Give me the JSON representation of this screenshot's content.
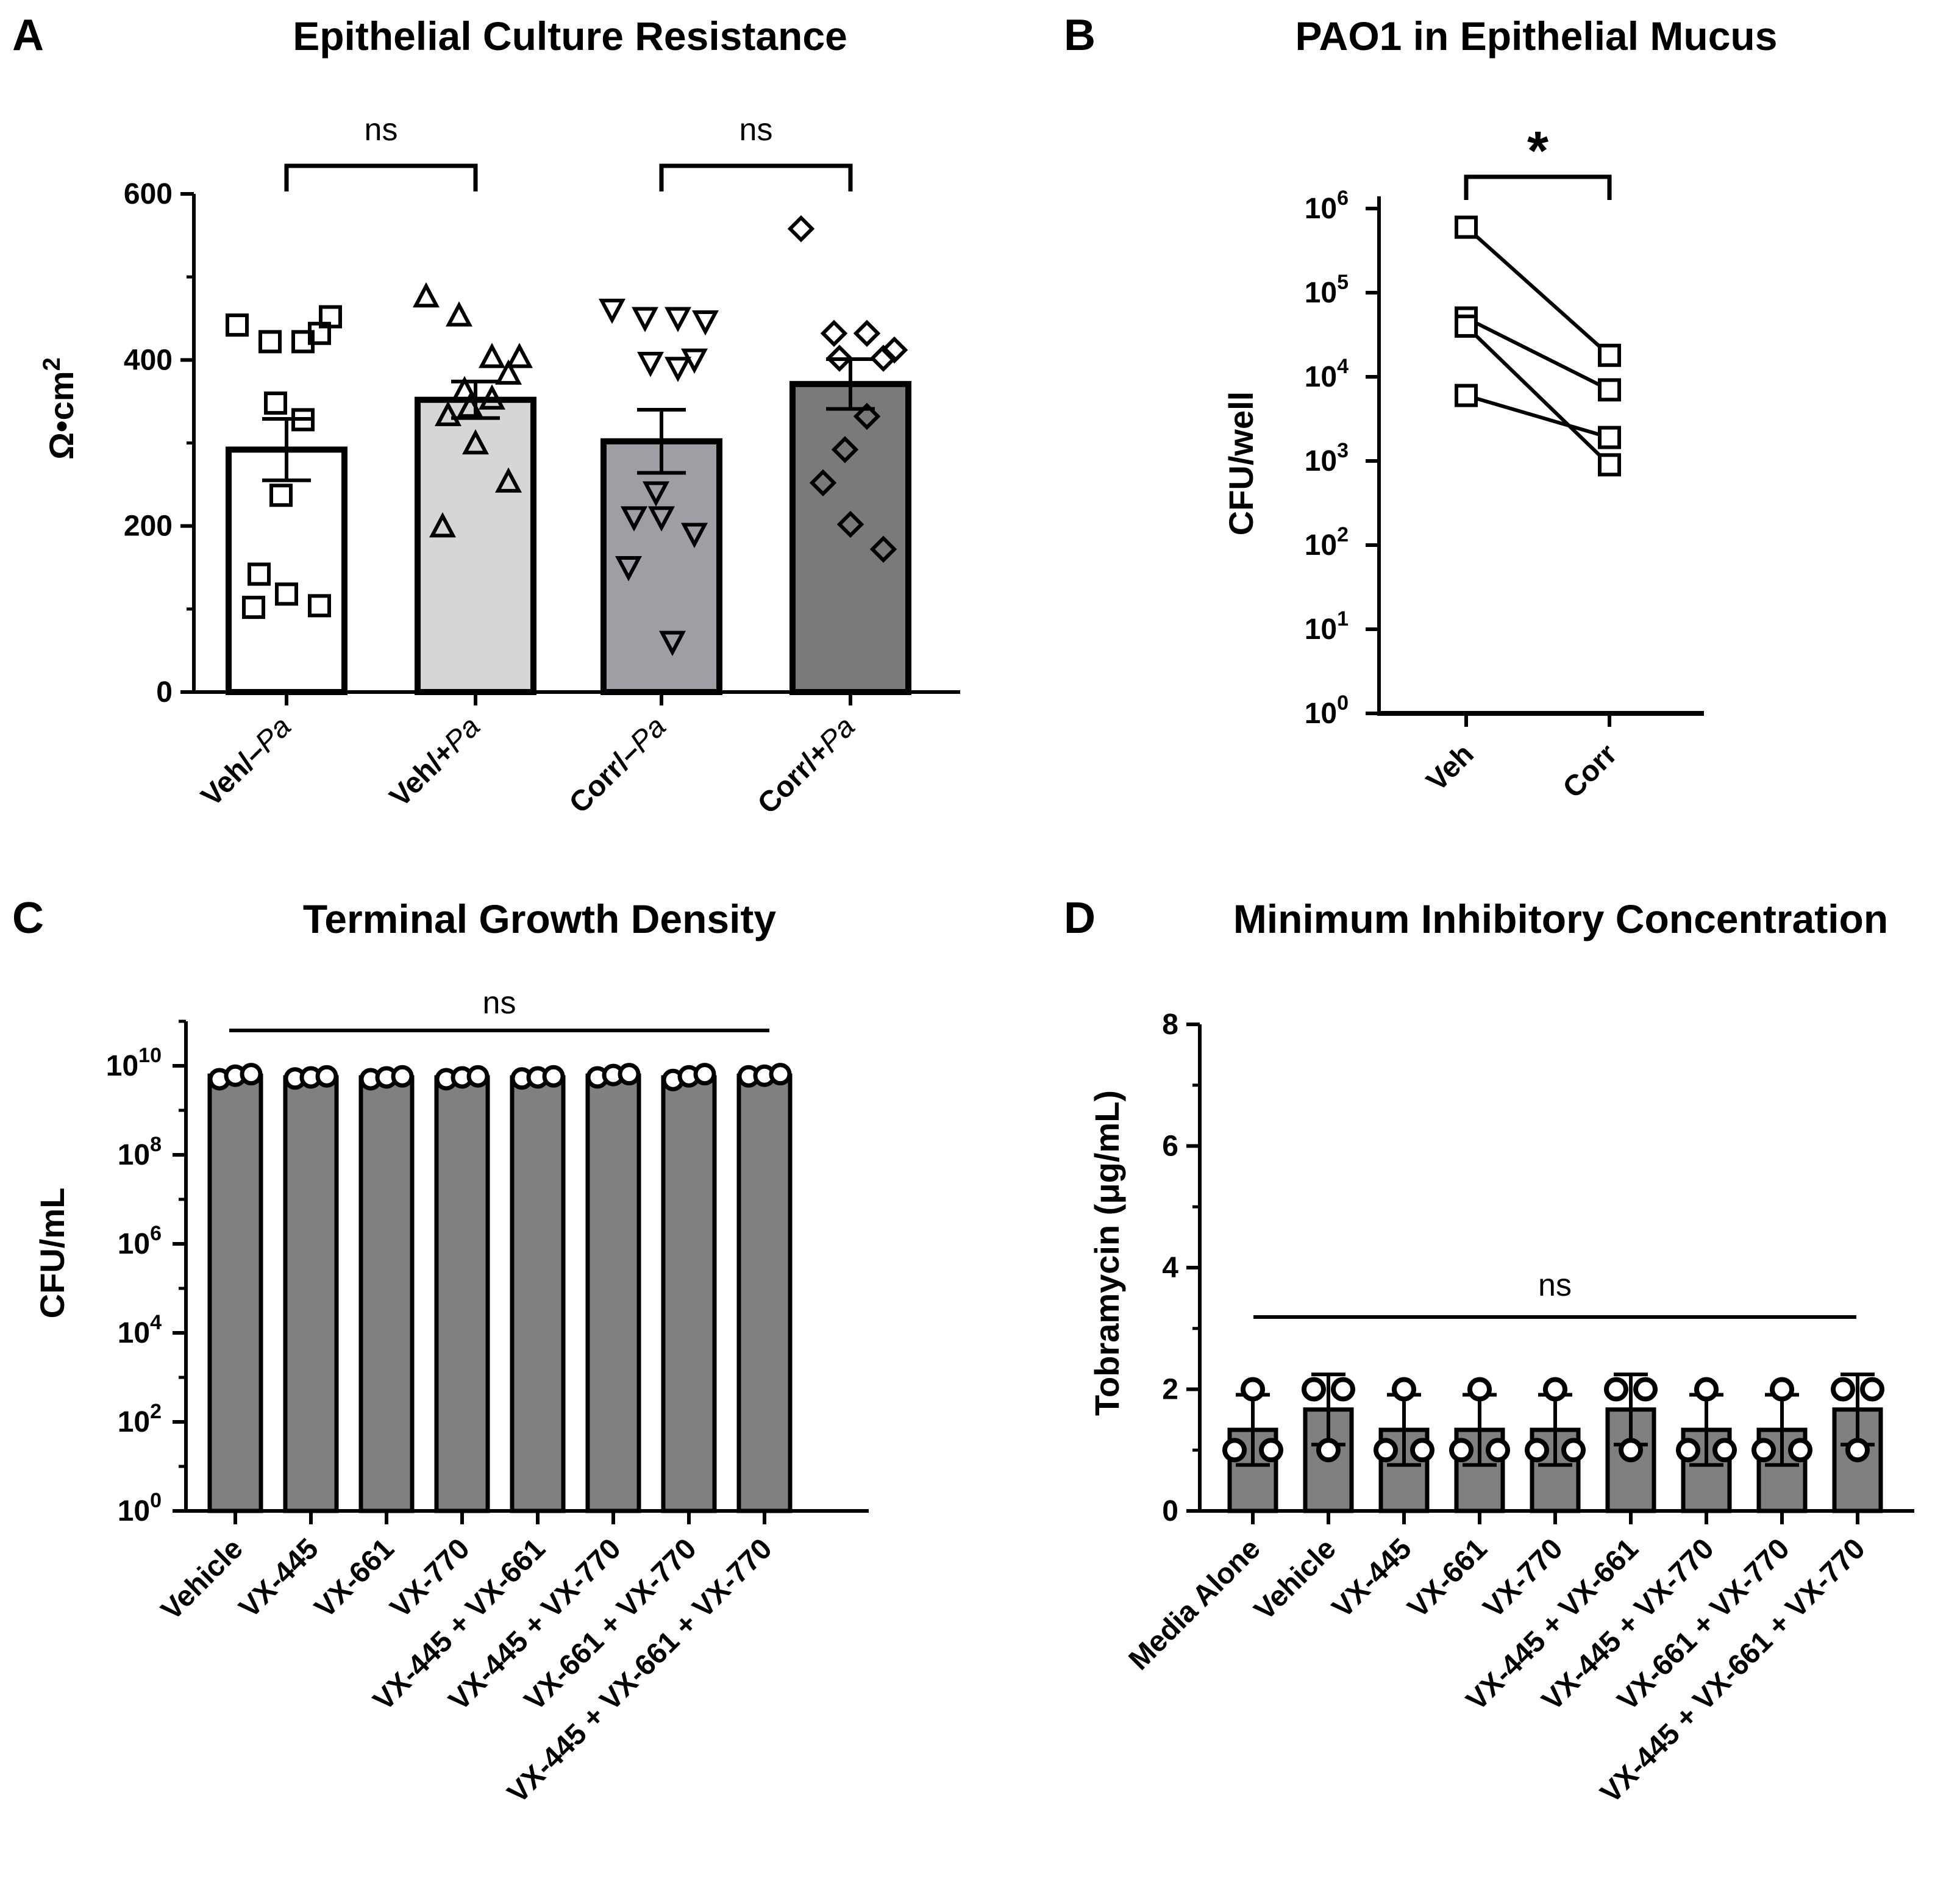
{
  "figure": {
    "panels": [
      "A",
      "B",
      "C",
      "D"
    ]
  },
  "colors": {
    "bar_white": "#ffffff",
    "bar_light": "#d6d6d6",
    "bar_mid": "#9e9ea4",
    "bar_dark": "#7a7a7a",
    "bar_gray": "#808080",
    "ink": "#000000"
  },
  "chart_data": [
    {
      "panel": "A",
      "type": "bar",
      "title": "Epithelial Culture Resistance",
      "ylabel": "Ω•cm",
      "ylabel_sup": "2",
      "ylim": [
        0,
        600
      ],
      "yticks": [
        "0",
        "200",
        "400",
        "600"
      ],
      "categories": [
        "Veh/–Pa",
        "Veh/+Pa",
        "Corr/–Pa",
        "Corr/+Pa"
      ],
      "category_parts": [
        [
          "Veh/–",
          "Pa"
        ],
        [
          "Veh/+",
          "Pa"
        ],
        [
          "Corr/–",
          "Pa"
        ],
        [
          "Corr/+",
          "Pa"
        ]
      ],
      "means": [
        292,
        352,
        302,
        371
      ],
      "sem": [
        37,
        22,
        38,
        30
      ],
      "points": [
        [
          442,
          422,
          422,
          452,
          432,
          348,
          328,
          237,
          142,
          118,
          104,
          102
        ],
        [
          475,
          452,
          402,
          402,
          382,
          362,
          352,
          342,
          332,
          298,
          252,
          198
        ],
        [
          462,
          452,
          452,
          448,
          402,
          398,
          392,
          242,
          212,
          212,
          192,
          152,
          62
        ],
        [
          558,
          432,
          432,
          412,
          402,
          402,
          332,
          292,
          252,
          202,
          172
        ]
      ],
      "markers": [
        "square",
        "triangle-up",
        "triangle-down",
        "diamond"
      ],
      "comparisons": [
        {
          "groups": [
            0,
            1
          ],
          "label": "ns"
        },
        {
          "groups": [
            2,
            3
          ],
          "label": "ns"
        }
      ]
    },
    {
      "panel": "B",
      "type": "line",
      "title": "PAO1 in Epithelial Mucus",
      "ylabel": "CFU/well",
      "yscale": "log",
      "ylim": [
        1,
        1000000
      ],
      "yticks": [
        {
          "base": "10",
          "exp": "0"
        },
        {
          "base": "10",
          "exp": "1"
        },
        {
          "base": "10",
          "exp": "2"
        },
        {
          "base": "10",
          "exp": "3"
        },
        {
          "base": "10",
          "exp": "4"
        },
        {
          "base": "10",
          "exp": "5"
        },
        {
          "base": "10",
          "exp": "6"
        }
      ],
      "categories": [
        "Veh",
        "Corr"
      ],
      "pairs": [
        [
          600000,
          18000
        ],
        [
          50000,
          7000
        ],
        [
          40000,
          900
        ],
        [
          6000,
          1900
        ]
      ],
      "comparisons": [
        {
          "groups": [
            0,
            1
          ],
          "label": "*"
        }
      ]
    },
    {
      "panel": "C",
      "type": "bar",
      "title": "Terminal Growth Density",
      "ylabel": "CFU/mL",
      "yscale": "log",
      "ylim": [
        1,
        100000000000
      ],
      "yticks": [
        {
          "base": "10",
          "exp": "0"
        },
        {
          "base": "10",
          "exp": "2"
        },
        {
          "base": "10",
          "exp": "4"
        },
        {
          "base": "10",
          "exp": "6"
        },
        {
          "base": "10",
          "exp": "8"
        },
        {
          "base": "10",
          "exp": "10"
        }
      ],
      "categories": [
        "Vehicle",
        "VX-445",
        "VX-661",
        "VX-770",
        "VX-445 + VX-661",
        "VX-445 + VX-770",
        "VX-661 + VX-770",
        "VX-445 + VX-661 + VX-770"
      ],
      "values": [
        6000000000,
        5500000000,
        5500000000,
        5500000000,
        5500000000,
        6000000000,
        5500000000,
        6000000000
      ],
      "points": [
        [
          5000000000,
          6000000000,
          6500000000
        ],
        [
          5200000000,
          5500000000,
          5800000000
        ],
        [
          5000000000,
          5500000000,
          5800000000
        ],
        [
          5000000000,
          5500000000,
          5800000000
        ],
        [
          5200000000,
          5500000000,
          5800000000
        ],
        [
          5500000000,
          6200000000,
          6500000000
        ],
        [
          4800000000,
          5800000000,
          6500000000
        ],
        [
          5800000000,
          6000000000,
          6500000000
        ]
      ],
      "comparisons": [
        {
          "groups": [
            0,
            7
          ],
          "label": "ns"
        }
      ]
    },
    {
      "panel": "D",
      "type": "bar",
      "title": "Minimum Inhibitory Concentration",
      "ylabel": "Tobramycin (μg/mL)",
      "ylim": [
        0,
        8
      ],
      "yticks": [
        "0",
        "2",
        "4",
        "6",
        "8"
      ],
      "categories": [
        "Media Alone",
        "Vehicle",
        "VX-445",
        "VX-661",
        "VX-770",
        "VX-445 + VX-661",
        "VX-445 + VX-770",
        "VX-661 + VX-770",
        "VX-445 + VX-661 + VX-770"
      ],
      "means": [
        1.333,
        1.667,
        1.333,
        1.333,
        1.333,
        1.667,
        1.333,
        1.333,
        1.667
      ],
      "sd": [
        0.577,
        0.577,
        0.577,
        0.577,
        0.577,
        0.577,
        0.577,
        0.577,
        0.577
      ],
      "points": [
        [
          2,
          1,
          1
        ],
        [
          2,
          2,
          1
        ],
        [
          2,
          1,
          1
        ],
        [
          2,
          1,
          1
        ],
        [
          2,
          1,
          1
        ],
        [
          2,
          2,
          1
        ],
        [
          2,
          1,
          1
        ],
        [
          2,
          1,
          1
        ],
        [
          2,
          2,
          1
        ]
      ],
      "comparisons": [
        {
          "groups": [
            0,
            8
          ],
          "label": "ns"
        }
      ]
    }
  ]
}
